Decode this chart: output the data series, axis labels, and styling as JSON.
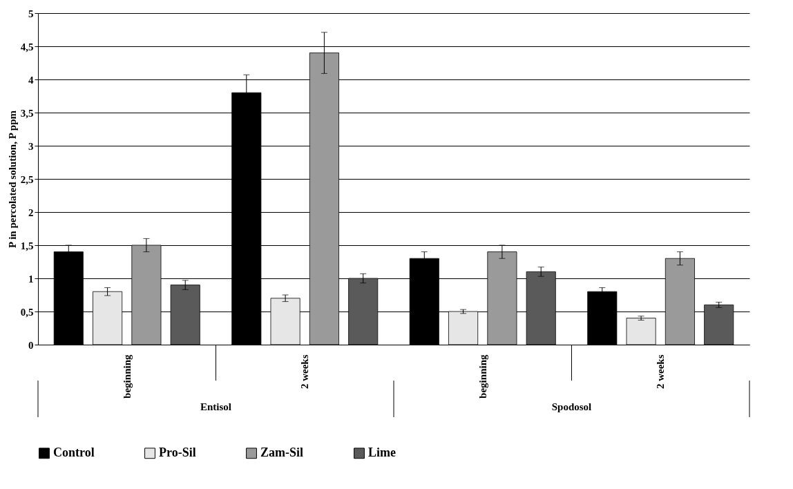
{
  "chart_data": {
    "type": "bar",
    "ylabel": "P in percolated solution, P ppm",
    "categories": [
      "beginning",
      "2 weeks",
      "beginning",
      "2 weeks"
    ],
    "series": [
      {
        "name": "Control",
        "color": "#000000",
        "values": [
          1.4,
          3.8,
          1.3,
          0.8
        ],
        "errors": [
          0.1,
          0.27,
          0.1,
          0.06
        ]
      },
      {
        "name": "Pro-Sil",
        "color": "#e6e6e6",
        "values": [
          0.8,
          0.7,
          0.5,
          0.4
        ],
        "errors": [
          0.06,
          0.05,
          0.03,
          0.03
        ]
      },
      {
        "name": "Zam-Sil",
        "color": "#9a9a9a",
        "values": [
          1.5,
          4.4,
          1.4,
          1.3
        ],
        "errors": [
          0.1,
          0.31,
          0.1,
          0.1
        ]
      },
      {
        "name": "Lime",
        "color": "#5a5a5a",
        "values": [
          0.9,
          1.0,
          1.1,
          0.6
        ],
        "errors": [
          0.07,
          0.07,
          0.07,
          0.04
        ]
      }
    ],
    "ylim": [
      0,
      5
    ],
    "yticks": [
      0,
      {
        "value": 0.5,
        "label": "0,5"
      },
      1,
      {
        "value": 1.5,
        "label": "1,5"
      },
      2,
      {
        "value": 2.5,
        "label": "2,5"
      },
      3,
      {
        "value": 3.5,
        "label": "3,5"
      },
      4,
      {
        "value": 4.5,
        "label": "4,5"
      },
      5
    ],
    "grid": "y",
    "legend": "bottom",
    "annotations": [
      "Entisol",
      "Spodosol"
    ]
  }
}
